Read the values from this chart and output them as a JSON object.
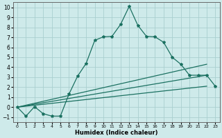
{
  "xlabel": "Humidex (Indice chaleur)",
  "background_color": "#ceeaea",
  "grid_color": "#aacfcf",
  "line_color": "#1a7060",
  "xlim": [
    -0.5,
    23.5
  ],
  "ylim": [
    -1.5,
    10.5
  ],
  "xticks": [
    0,
    1,
    2,
    3,
    4,
    5,
    6,
    7,
    8,
    9,
    10,
    11,
    12,
    13,
    14,
    15,
    16,
    17,
    18,
    19,
    20,
    21,
    22,
    23
  ],
  "yticks": [
    -1,
    0,
    1,
    2,
    3,
    4,
    5,
    6,
    7,
    8,
    9,
    10
  ],
  "series1_x": [
    0,
    1,
    2,
    3,
    4,
    5,
    6,
    7,
    8,
    9,
    10,
    11,
    12,
    13,
    14,
    15,
    16,
    17,
    18,
    19,
    20,
    21,
    22,
    23
  ],
  "series1_y": [
    0.0,
    -0.9,
    0.05,
    -0.65,
    -0.9,
    -0.9,
    1.3,
    3.1,
    4.4,
    6.7,
    7.05,
    7.1,
    8.3,
    10.1,
    8.2,
    7.1,
    7.05,
    6.5,
    5.0,
    4.3,
    3.2,
    3.2,
    3.2,
    2.1
  ],
  "line2_x": [
    0,
    22
  ],
  "line2_y": [
    0.0,
    2.1
  ],
  "line3_x": [
    0,
    22
  ],
  "line3_y": [
    0.0,
    3.2
  ],
  "line4_x": [
    0,
    22
  ],
  "line4_y": [
    0.0,
    4.3
  ]
}
